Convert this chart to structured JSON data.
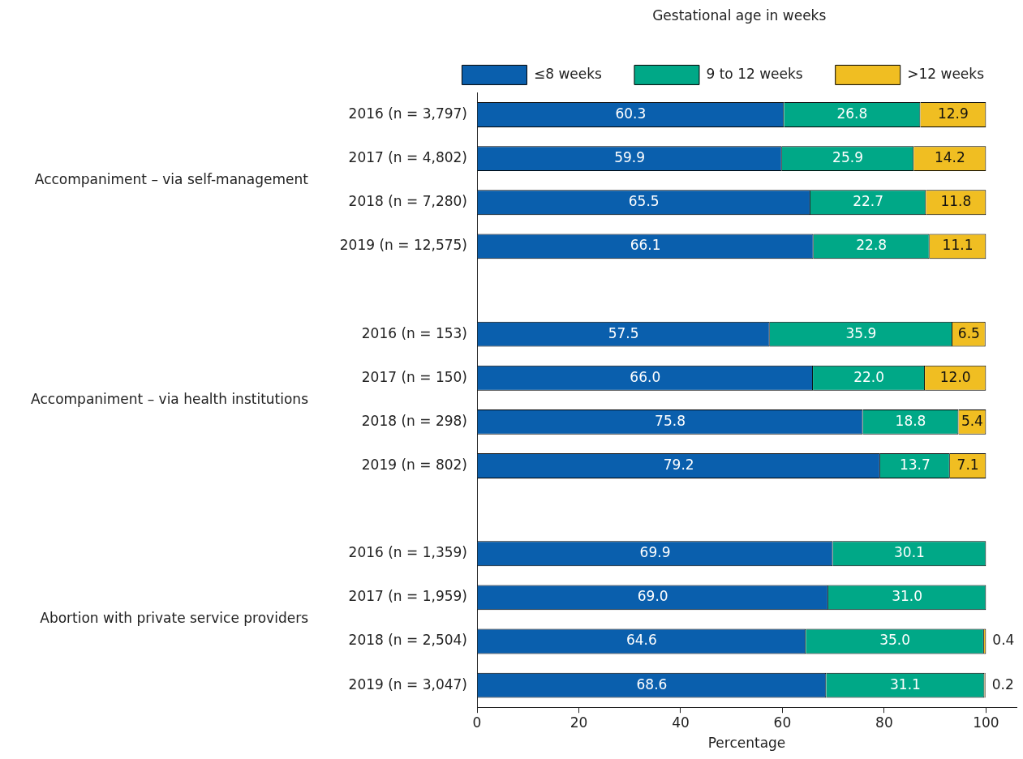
{
  "chart_data": {
    "type": "bar",
    "orientation": "horizontal",
    "stacked": true,
    "legend_title": "Gestational age in weeks",
    "legend": "top",
    "grid": false,
    "xlabel": "Percentage",
    "xlim": [
      0,
      106
    ],
    "xticks": [
      0,
      20,
      40,
      60,
      80,
      100
    ],
    "categories": [
      "2016 (n = 3,797)",
      "2017 (n = 4,802)",
      "2018 (n = 7,280)",
      "2019 (n = 12,575)",
      null,
      "2016 (n = 153)",
      "2017 (n = 150)",
      "2018 (n = 298)",
      "2019 (n = 802)",
      null,
      "2016 (n = 1,359)",
      "2017 (n = 1,959)",
      "2018 (n = 2,504)",
      "2019 (n = 3,047)"
    ],
    "annotations": [
      "Accompaniment – via self-management",
      "Accompaniment – via health institutions",
      "Abortion with private service providers"
    ],
    "series": [
      {
        "name": "≤8 weeks",
        "color": "#0a5fad",
        "values": [
          60.3,
          59.9,
          65.5,
          66.1,
          null,
          57.5,
          66.0,
          75.8,
          79.2,
          null,
          69.9,
          69.0,
          64.6,
          68.6
        ],
        "value_labels": [
          "60.3",
          "59.9",
          "65.5",
          "66.1",
          null,
          "57.5",
          "66.0",
          "75.8",
          "79.2",
          null,
          "69.9",
          "69.0",
          "64.6",
          "68.6"
        ]
      },
      {
        "name": "9 to 12 weeks",
        "color": "#00a887",
        "values": [
          26.8,
          25.9,
          22.7,
          22.8,
          null,
          35.9,
          22.0,
          18.8,
          13.7,
          null,
          30.1,
          31.0,
          35.0,
          31.1
        ],
        "value_labels": [
          "26.8",
          "25.9",
          "22.7",
          "22.8",
          null,
          "35.9",
          "22.0",
          "18.8",
          "13.7",
          null,
          "30.1",
          "31.0",
          "35.0",
          "31.1"
        ]
      },
      {
        "name": ">12 weeks",
        "color": "#f0be22",
        "values": [
          12.9,
          14.2,
          11.8,
          11.1,
          null,
          6.5,
          12.0,
          5.4,
          7.1,
          null,
          null,
          null,
          0.4,
          0.2
        ],
        "value_labels": [
          "12.9",
          "14.2",
          "11.8",
          "11.1",
          null,
          "6.5",
          "12.0",
          "5.4",
          "7.1",
          null,
          null,
          null,
          "0.4",
          "0.2"
        ]
      }
    ]
  }
}
